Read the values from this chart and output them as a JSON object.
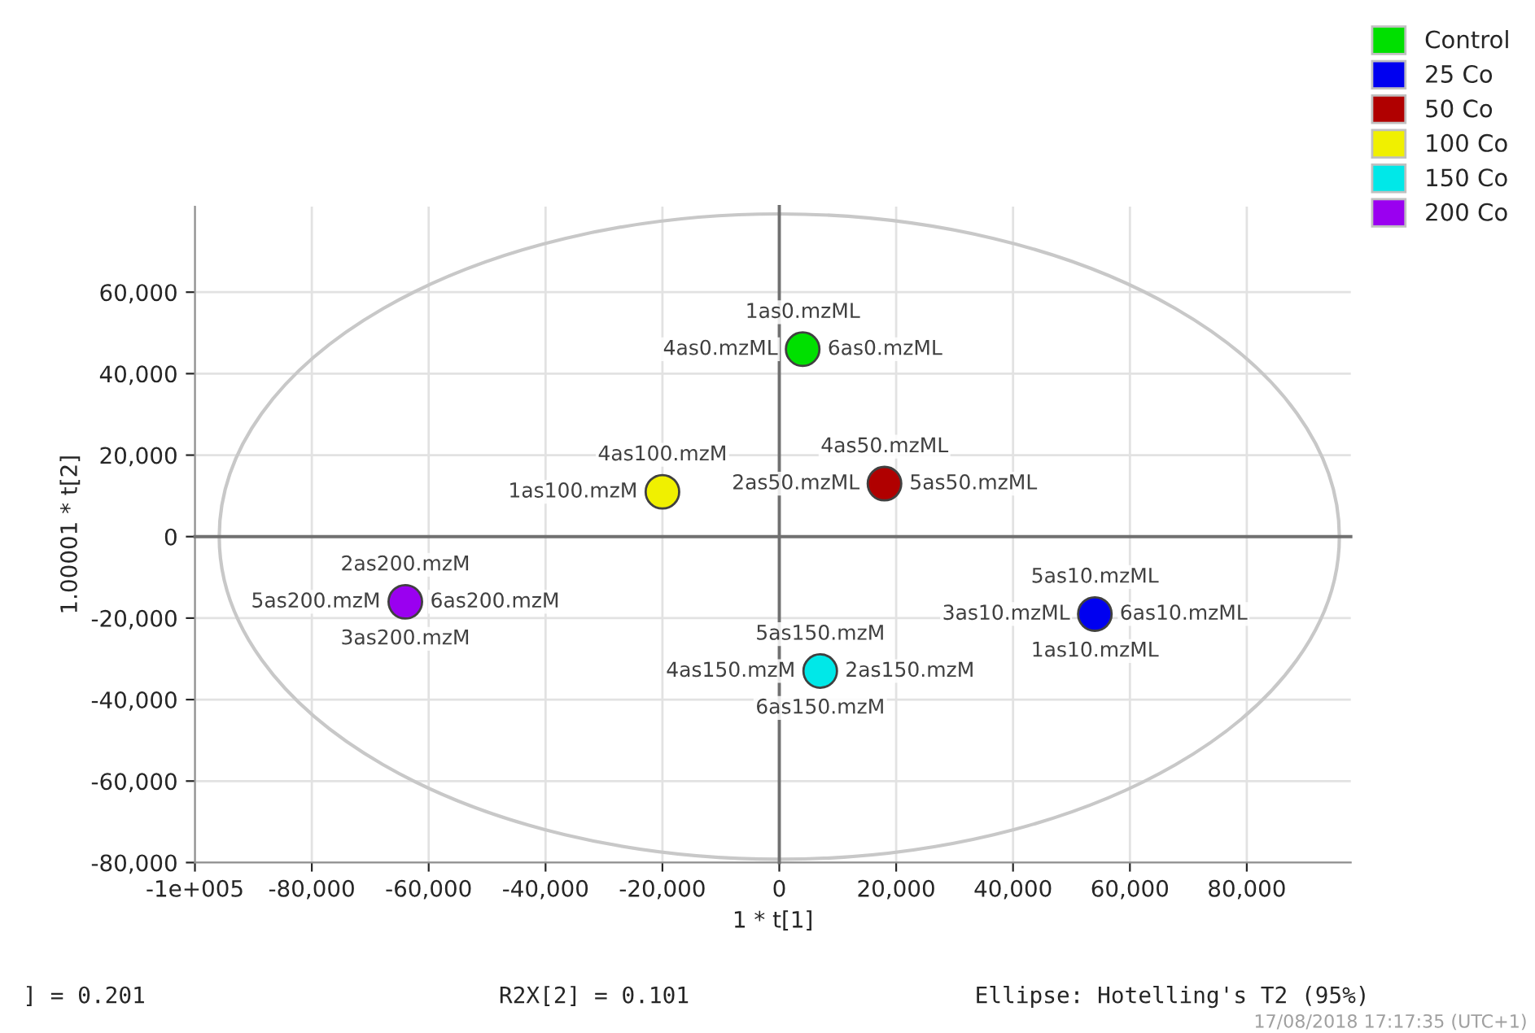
{
  "chart_data": {
    "type": "scatter",
    "xlabel": "1 * t[1]",
    "ylabel": "1.00001 * t[2]",
    "xlim": [
      -100000,
      97800
    ],
    "ylim": [
      -80000,
      81000
    ],
    "xticks": [
      {
        "value": -100000,
        "label": "-1e+005"
      },
      {
        "value": -80000,
        "label": "-80,000"
      },
      {
        "value": -60000,
        "label": "-60,000"
      },
      {
        "value": -40000,
        "label": "-40,000"
      },
      {
        "value": -20000,
        "label": "-20,000"
      },
      {
        "value": 0,
        "label": "0"
      },
      {
        "value": 20000,
        "label": "20,000"
      },
      {
        "value": 40000,
        "label": "40,000"
      },
      {
        "value": 60000,
        "label": "60,000"
      },
      {
        "value": 80000,
        "label": "80,000"
      }
    ],
    "yticks": [
      {
        "value": -80000,
        "label": "-80,000"
      },
      {
        "value": -60000,
        "label": "-60,000"
      },
      {
        "value": -40000,
        "label": "-40,000"
      },
      {
        "value": -20000,
        "label": "-20,000"
      },
      {
        "value": 0,
        "label": "0"
      },
      {
        "value": 20000,
        "label": "20,000"
      },
      {
        "value": 40000,
        "label": "40,000"
      },
      {
        "value": 60000,
        "label": "60,000"
      }
    ],
    "grid": true,
    "legend": "top right",
    "marker": "circle",
    "series": [
      {
        "name": "Control",
        "color": "#00e000",
        "x": [
          4000
        ],
        "values": [
          46000
        ]
      },
      {
        "name": "25 Co",
        "color": "#0000f0",
        "x": [
          54000
        ],
        "values": [
          -19000
        ]
      },
      {
        "name": "50 Co",
        "color": "#b00000",
        "x": [
          18000
        ],
        "values": [
          13000
        ]
      },
      {
        "name": "100 Co",
        "color": "#f0f000",
        "x": [
          -20000
        ],
        "values": [
          11000
        ]
      },
      {
        "name": "150 Co",
        "color": "#00e8e8",
        "x": [
          7000
        ],
        "values": [
          -33000
        ]
      },
      {
        "name": "200 Co",
        "color": "#9a00f0",
        "x": [
          -64000
        ],
        "values": [
          -16000
        ]
      }
    ],
    "annotations": [
      {
        "text": "6as0.mzML",
        "x": 4000,
        "y": 46000
      },
      {
        "text": "4as0.mzML",
        "x": 4000,
        "y": 46000
      },
      {
        "text": "1as0.mzML",
        "x": 4000,
        "y": 46000
      },
      {
        "text": "5as50.mzML",
        "x": 18000,
        "y": 13000
      },
      {
        "text": "2as50.mzML",
        "x": 18000,
        "y": 13000
      },
      {
        "text": "4as50.mzML",
        "x": 18000,
        "y": 13000
      },
      {
        "text": "1as100.mzM",
        "x": -20000,
        "y": 11000
      },
      {
        "text": "4as100.mzM",
        "x": -20000,
        "y": 11000
      },
      {
        "text": "6as200.mzM",
        "x": -64000,
        "y": -16000
      },
      {
        "text": "5as200.mzM",
        "x": -64000,
        "y": -16000
      },
      {
        "text": "2as200.mzM",
        "x": -64000,
        "y": -16000
      },
      {
        "text": "3as200.mzM",
        "x": -64000,
        "y": -16000
      },
      {
        "text": "2as150.mzM",
        "x": 7000,
        "y": -33000
      },
      {
        "text": "4as150.mzM",
        "x": 7000,
        "y": -33000
      },
      {
        "text": "5as150.mzM",
        "x": 7000,
        "y": -33000
      },
      {
        "text": "6as150.mzM",
        "x": 7000,
        "y": -33000
      },
      {
        "text": "6as10.mzML",
        "x": 54000,
        "y": -19000
      },
      {
        "text": "3as10.mzML",
        "x": 54000,
        "y": -19000
      },
      {
        "text": "5as10.mzML",
        "x": 54000,
        "y": -19000
      },
      {
        "text": "1as10.mzML",
        "x": 54000,
        "y": -19000
      },
      "] = 0.201",
      "R2X[2] = 0.101",
      "Ellipse: Hotelling's T2 (95%)",
      "17/08/2018 17:17:35 (UTC+1)"
    ]
  }
}
